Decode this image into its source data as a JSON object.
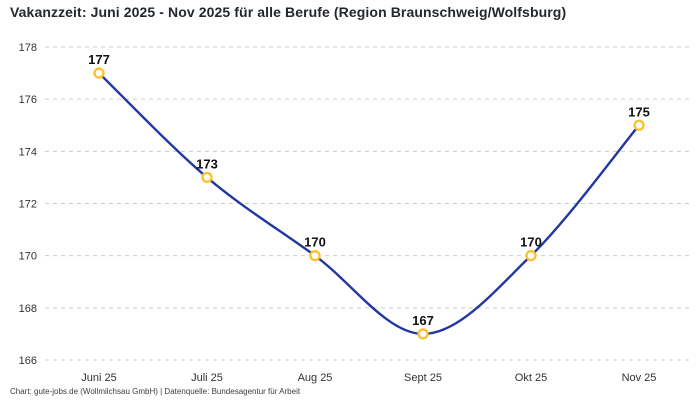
{
  "header": {
    "title": "Vakanzzeit: Juni 2025 - Nov 2025 für alle Berufe (Region Braunschweig/Wolfsburg)"
  },
  "footer": {
    "credit": "Chart: gute-jobs.de (Wollmilchsau GmbH) | Datenquelle: Bundesagentur für Arbeit"
  },
  "chart_data": {
    "type": "line",
    "title": "Vakanzzeit: Juni 2025 - Nov 2025 für alle Berufe (Region Braunschweig/Wolfsburg)",
    "categories": [
      "Juni 25",
      "Juli 25",
      "Aug 25",
      "Sept 25",
      "Okt 25",
      "Nov 25"
    ],
    "values": [
      177,
      173,
      170,
      167,
      170,
      175
    ],
    "point_labels": [
      "177",
      "173",
      "170",
      "167",
      "170",
      "175"
    ],
    "xlabel": "",
    "ylabel": "",
    "ylim": [
      166,
      178
    ],
    "yticks": [
      166,
      168,
      170,
      172,
      174,
      176,
      178
    ],
    "grid": "horizontal-dashed",
    "legend_position": "none",
    "line_style": "smooth",
    "colors": {
      "line": "#2337a0",
      "marker_ring": "#fbc02d",
      "marker_fill": "#ffffff",
      "grid": "#cccccc",
      "title_text": "#23272e",
      "point_label_text": "#111111",
      "tick_text": "#333333"
    }
  }
}
